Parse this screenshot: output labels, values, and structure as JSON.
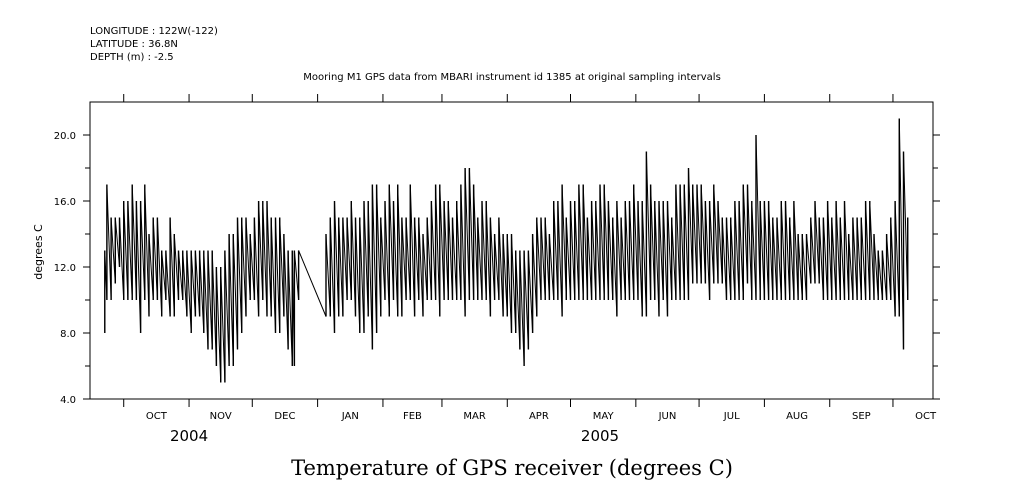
{
  "header": {
    "longitude": "LONGITUDE : 122W(-122)",
    "latitude": "LATITUDE : 36.8N",
    "depth": "DEPTH (m) : -2.5"
  },
  "chart_data": {
    "type": "line",
    "title": "Mooring M1 GPS data from MBARI instrument id 1385 at original sampling intervals",
    "xlabel": "Temperature of GPS receiver (degrees C)",
    "ylabel": "degrees C",
    "ylim": [
      4.0,
      22.0
    ],
    "yticks": [
      4.0,
      8.0,
      12.0,
      16.0,
      20.0
    ],
    "ytick_labels": [
      "4.0",
      "8.0",
      "12.0",
      "16.0",
      "20.0"
    ],
    "xlim": [
      "2004-09-15",
      "2005-10-20"
    ],
    "month_ticks": [
      {
        "label": "OCT",
        "date": "2004-10-01"
      },
      {
        "label": "NOV",
        "date": "2004-11-01"
      },
      {
        "label": "DEC",
        "date": "2004-12-01"
      },
      {
        "label": "JAN",
        "date": "2005-01-01"
      },
      {
        "label": "FEB",
        "date": "2005-02-01"
      },
      {
        "label": "MAR",
        "date": "2005-03-01"
      },
      {
        "label": "APR",
        "date": "2005-04-01"
      },
      {
        "label": "MAY",
        "date": "2005-05-01"
      },
      {
        "label": "JUN",
        "date": "2005-06-01"
      },
      {
        "label": "JUL",
        "date": "2005-07-01"
      },
      {
        "label": "AUG",
        "date": "2005-08-01"
      },
      {
        "label": "SEP",
        "date": "2005-09-01"
      },
      {
        "label": "OCT",
        "date": "2005-10-01"
      }
    ],
    "year_labels": [
      {
        "label": "2004",
        "date": "2004-11-01"
      },
      {
        "label": "2005",
        "date": "2005-05-15"
      }
    ],
    "grid": false,
    "series": [
      {
        "x": [
          "2004-09-22",
          "2004-09-23",
          "2004-09-25",
          "2004-09-27",
          "2004-09-29",
          "2004-10-01",
          "2004-10-03",
          "2004-10-05",
          "2004-10-07",
          "2004-10-09",
          "2004-10-11",
          "2004-10-13",
          "2004-10-15",
          "2004-10-17",
          "2004-10-19",
          "2004-10-21",
          "2004-10-23",
          "2004-10-25",
          "2004-10-27",
          "2004-10-29",
          "2004-10-31",
          "2004-11-02",
          "2004-11-04",
          "2004-11-06",
          "2004-11-08",
          "2004-11-10",
          "2004-11-12",
          "2004-11-14",
          "2004-11-16",
          "2004-11-18",
          "2004-11-20",
          "2004-11-22",
          "2004-11-24",
          "2004-11-26",
          "2004-11-28",
          "2004-11-30",
          "2004-12-02",
          "2004-12-04",
          "2004-12-06",
          "2004-12-08",
          "2004-12-10",
          "2004-12-12",
          "2004-12-14",
          "2004-12-16",
          "2004-12-18",
          "2004-12-20",
          "2004-12-21",
          "2004-12-23",
          "2005-01-05",
          "2005-01-07",
          "2005-01-09",
          "2005-01-11",
          "2005-01-13",
          "2005-01-15",
          "2005-01-17",
          "2005-01-19",
          "2005-01-21",
          "2005-01-23",
          "2005-01-25",
          "2005-01-27",
          "2005-01-29",
          "2005-01-31",
          "2005-02-02",
          "2005-02-04",
          "2005-02-06",
          "2005-02-08",
          "2005-02-10",
          "2005-02-12",
          "2005-02-14",
          "2005-02-16",
          "2005-02-18",
          "2005-02-20",
          "2005-02-22",
          "2005-02-24",
          "2005-02-26",
          "2005-02-28",
          "2005-03-02",
          "2005-03-04",
          "2005-03-06",
          "2005-03-08",
          "2005-03-10",
          "2005-03-12",
          "2005-03-14",
          "2005-03-16",
          "2005-03-18",
          "2005-03-20",
          "2005-03-22",
          "2005-03-24",
          "2005-03-26",
          "2005-03-28",
          "2005-03-30",
          "2005-04-01",
          "2005-04-03",
          "2005-04-05",
          "2005-04-07",
          "2005-04-09",
          "2005-04-11",
          "2005-04-13",
          "2005-04-15",
          "2005-04-17",
          "2005-04-19",
          "2005-04-21",
          "2005-04-23",
          "2005-04-25",
          "2005-04-27",
          "2005-04-29",
          "2005-05-01",
          "2005-05-03",
          "2005-05-05",
          "2005-05-07",
          "2005-05-09",
          "2005-05-11",
          "2005-05-13",
          "2005-05-15",
          "2005-05-17",
          "2005-05-19",
          "2005-05-21",
          "2005-05-23",
          "2005-05-25",
          "2005-05-27",
          "2005-05-29",
          "2005-05-31",
          "2005-06-02",
          "2005-06-04",
          "2005-06-06",
          "2005-06-08",
          "2005-06-10",
          "2005-06-12",
          "2005-06-14",
          "2005-06-16",
          "2005-06-18",
          "2005-06-20",
          "2005-06-22",
          "2005-06-24",
          "2005-06-26",
          "2005-06-28",
          "2005-06-30",
          "2005-07-02",
          "2005-07-04",
          "2005-07-06",
          "2005-07-08",
          "2005-07-10",
          "2005-07-12",
          "2005-07-14",
          "2005-07-16",
          "2005-07-18",
          "2005-07-20",
          "2005-07-22",
          "2005-07-24",
          "2005-07-26",
          "2005-07-28",
          "2005-07-30",
          "2005-08-01",
          "2005-08-03",
          "2005-08-05",
          "2005-08-07",
          "2005-08-09",
          "2005-08-11",
          "2005-08-13",
          "2005-08-15",
          "2005-08-17",
          "2005-08-19",
          "2005-08-21",
          "2005-08-23",
          "2005-08-25",
          "2005-08-27",
          "2005-08-29",
          "2005-08-31",
          "2005-09-02",
          "2005-09-04",
          "2005-09-06",
          "2005-09-08",
          "2005-09-10",
          "2005-09-12",
          "2005-09-14",
          "2005-09-16",
          "2005-09-18",
          "2005-09-20",
          "2005-09-22",
          "2005-09-24",
          "2005-09-26",
          "2005-09-28",
          "2005-09-30",
          "2005-10-02",
          "2005-10-04",
          "2005-10-06",
          "2005-10-08",
          "2005-10-10"
        ],
        "min": [
          8,
          10,
          10,
          11,
          12,
          10,
          10,
          10,
          10,
          8,
          10,
          9,
          10,
          10,
          9,
          10,
          9,
          9,
          10,
          10,
          9,
          8,
          9,
          9,
          8,
          7,
          7,
          6,
          5,
          5,
          6,
          6,
          7,
          8,
          9,
          10,
          10,
          9,
          10,
          9,
          9,
          8,
          8,
          9,
          7,
          6,
          6,
          10,
          9,
          9,
          8,
          9,
          9,
          10,
          10,
          9,
          8,
          8,
          9,
          7,
          8,
          9,
          10,
          9,
          10,
          9,
          9,
          10,
          10,
          9,
          10,
          9,
          10,
          10,
          10,
          9,
          10,
          10,
          10,
          10,
          10,
          9,
          10,
          10,
          10,
          10,
          10,
          9,
          10,
          10,
          9,
          9,
          8,
          8,
          7,
          6,
          7,
          8,
          9,
          10,
          10,
          10,
          10,
          10,
          9,
          10,
          10,
          10,
          10,
          10,
          10,
          10,
          10,
          10,
          10,
          10,
          10,
          9,
          10,
          10,
          10,
          10,
          10,
          9,
          9,
          10,
          10,
          9,
          10,
          9,
          10,
          10,
          10,
          10,
          10,
          11,
          11,
          11,
          11,
          10,
          11,
          11,
          11,
          10,
          10,
          10,
          10,
          10,
          11,
          10,
          10,
          10,
          10,
          10,
          10,
          10,
          10,
          10,
          10,
          10,
          10,
          10,
          10,
          11,
          11,
          11,
          10,
          10,
          10,
          10,
          10,
          10,
          10,
          10,
          10,
          10,
          10,
          10,
          10,
          10,
          10,
          10,
          10,
          9,
          9,
          7,
          10
        ],
        "max": [
          13,
          17,
          15,
          15,
          15,
          16,
          16,
          17,
          16,
          16,
          17,
          14,
          15,
          15,
          13,
          13,
          15,
          14,
          13,
          13,
          13,
          13,
          13,
          13,
          13,
          13,
          13,
          12,
          12,
          13,
          14,
          14,
          15,
          15,
          15,
          14,
          15,
          16,
          16,
          16,
          15,
          15,
          15,
          14,
          13,
          13,
          13,
          13,
          14,
          15,
          16,
          15,
          15,
          15,
          16,
          15,
          15,
          16,
          16,
          17,
          17,
          15,
          16,
          17,
          16,
          17,
          15,
          15,
          17,
          15,
          15,
          14,
          15,
          16,
          17,
          17,
          16,
          16,
          15,
          16,
          17,
          18,
          18,
          17,
          15,
          16,
          16,
          15,
          14,
          15,
          14,
          14,
          14,
          13,
          13,
          13,
          13,
          14,
          15,
          15,
          15,
          14,
          16,
          16,
          17,
          15,
          16,
          16,
          17,
          17,
          15,
          16,
          16,
          17,
          17,
          16,
          15,
          16,
          15,
          16,
          16,
          17,
          16,
          16,
          19,
          17,
          16,
          16,
          16,
          16,
          15,
          17,
          17,
          17,
          18,
          17,
          17,
          17,
          16,
          16,
          17,
          16,
          15,
          15,
          15,
          16,
          16,
          17,
          17,
          16,
          20,
          16,
          16,
          16,
          15,
          15,
          16,
          16,
          15,
          16,
          14,
          14,
          14,
          15,
          16,
          15,
          15,
          16,
          15,
          16,
          15,
          16,
          14,
          15,
          15,
          15,
          16,
          16,
          14,
          13,
          13,
          14,
          15,
          16,
          21,
          19,
          15
        ]
      }
    ]
  }
}
